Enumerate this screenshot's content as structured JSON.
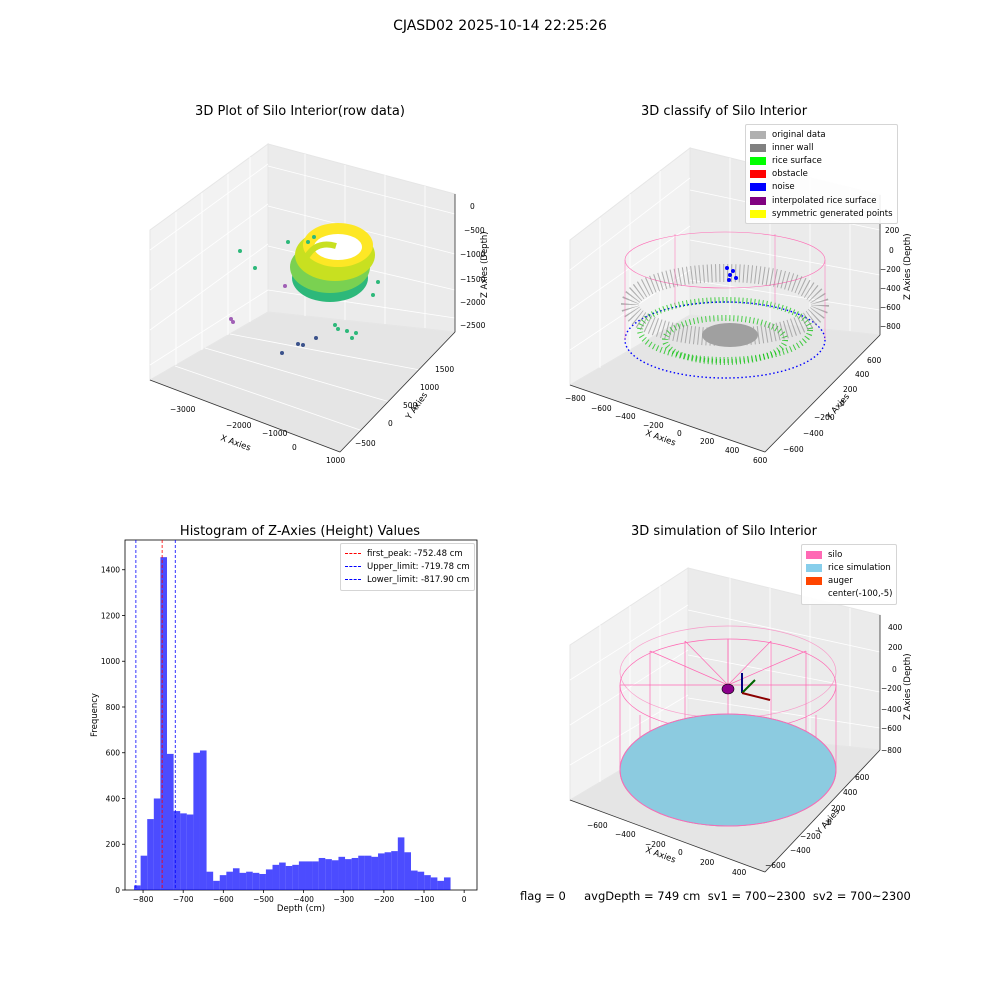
{
  "figure": {
    "suptitle": "CJASD02 2025-10-14 22:25:26",
    "footer": "flag = 0     avgDepth = 749 cm  sv1 = 700~2300  sv2 = 700~2300"
  },
  "panels": {
    "raw": {
      "title": "3D Plot of Silo Interior(row data)",
      "xlabel": "X Axies",
      "ylabel": "Y Axies",
      "zlabel": "Z Axies (Depth)",
      "xticks": [
        "−3000",
        "−2000",
        "−1000",
        "0",
        "1000"
      ],
      "yticks": [
        "−500",
        "0",
        "500",
        "1000",
        "1500"
      ],
      "zticks": [
        "0",
        "−500",
        "−1000",
        "−1500",
        "−2000",
        "−2500"
      ]
    },
    "classify": {
      "title": "3D classify of Silo Interior",
      "xlabel": "X Axies",
      "ylabel": "Y Axies",
      "zlabel": "Z Axies (Depth)",
      "xticks": [
        "−800",
        "−600",
        "−400",
        "−200",
        "0",
        "200",
        "400",
        "600"
      ],
      "yticks": [
        "−600",
        "−400",
        "−200",
        "0",
        "200",
        "400",
        "600"
      ],
      "zticks": [
        "200",
        "0",
        "−200",
        "−400",
        "−600",
        "−800"
      ],
      "legend": [
        {
          "label": "original data",
          "color": "#b0b0b0"
        },
        {
          "label": "inner wall",
          "color": "#808080"
        },
        {
          "label": "rice surface",
          "color": "#00ff00"
        },
        {
          "label": "obstacle",
          "color": "#ff0000"
        },
        {
          "label": "noise",
          "color": "#0000ff"
        },
        {
          "label": "interpolated rice surface",
          "color": "#800080"
        },
        {
          "label": "symmetric generated points",
          "color": "#ffff00"
        }
      ]
    },
    "simulation": {
      "title": "3D simulation of Silo Interior",
      "xlabel": "X Axies",
      "ylabel": "Y Axies",
      "zlabel": "Z Axies (Depth)",
      "xticks": [
        "−600",
        "−400",
        "−200",
        "0",
        "200",
        "400"
      ],
      "yticks": [
        "−600",
        "−400",
        "−200",
        "0",
        "200",
        "400",
        "600"
      ],
      "zticks": [
        "400",
        "200",
        "0",
        "−200",
        "−400",
        "−600",
        "−800"
      ],
      "legend": [
        {
          "label": "silo",
          "color": "#ff69b4"
        },
        {
          "label": "rice simulation",
          "color": "#87ceeb"
        },
        {
          "label": "auger",
          "color": "#ff4500"
        },
        {
          "label": "center(-100,-5)",
          "color": ""
        }
      ]
    }
  },
  "chart_data": {
    "type": "bar",
    "title": "Histogram of Z-Axies (Height) Values",
    "xlabel": "Depth (cm)",
    "ylabel": "Frequency",
    "xlim": [
      -845,
      32
    ],
    "ylim": [
      0,
      1530
    ],
    "xticks": [
      -800,
      -700,
      -600,
      -500,
      -400,
      -300,
      -200,
      -100,
      0
    ],
    "yticks": [
      0,
      200,
      400,
      600,
      800,
      1000,
      1200,
      1400
    ],
    "bar_color": "#0000ff",
    "bins": {
      "start": -822.5,
      "width": 16.43,
      "counts": [
        20,
        150,
        310,
        400,
        1455,
        595,
        345,
        335,
        330,
        600,
        610,
        80,
        40,
        65,
        80,
        95,
        75,
        80,
        75,
        70,
        90,
        110,
        120,
        105,
        110,
        125,
        125,
        125,
        140,
        135,
        130,
        145,
        135,
        140,
        150,
        150,
        145,
        160,
        165,
        170,
        230,
        165,
        85,
        80,
        65,
        55,
        40,
        55
      ]
    },
    "vlines": [
      {
        "x": -752.48,
        "color": "#ff0000",
        "label": "first_peak: -752.48 cm"
      },
      {
        "x": -719.78,
        "color": "#0000ff",
        "label": "Upper_limit: -719.78 cm"
      },
      {
        "x": -817.9,
        "color": "#0000ff",
        "label": "Lower_limit: -817.90 cm"
      }
    ],
    "legend_position": "upper right"
  }
}
